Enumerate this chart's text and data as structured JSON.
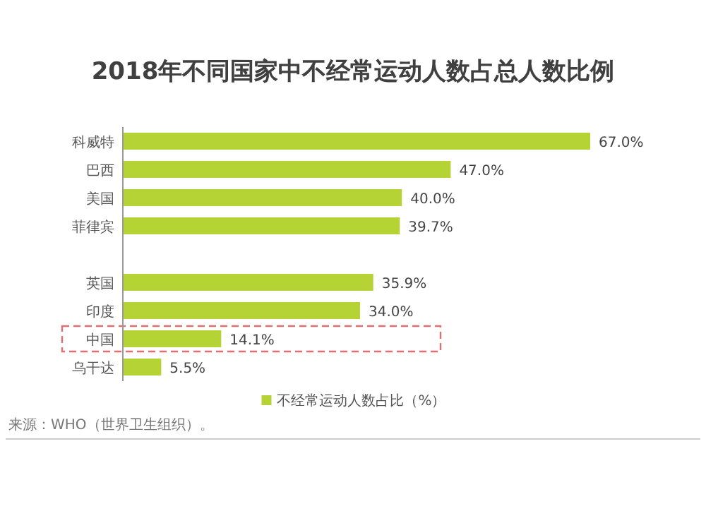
{
  "chart_data": {
    "type": "bar",
    "orientation": "horizontal",
    "title": "2018年不同国家中不经常运动人数占总人数比例",
    "categories": [
      "科威特",
      "巴西",
      "美国",
      "菲律宾",
      null,
      "英国",
      "印度",
      "中国",
      "乌干达"
    ],
    "series": [
      {
        "name": "不经常运动人数占比（%）",
        "color": "#b5d334",
        "values": [
          67.0,
          47.0,
          40.0,
          39.7,
          null,
          35.9,
          34.0,
          14.1,
          5.5
        ],
        "value_labels": [
          "67.0%",
          "47.0%",
          "40.0%",
          "39.7%",
          null,
          "35.9%",
          "34.0%",
          "14.1%",
          "5.5%"
        ]
      }
    ],
    "legend": "bottom",
    "annotations": [
      "来源：WHO（世界卫生组织）。"
    ]
  }
}
